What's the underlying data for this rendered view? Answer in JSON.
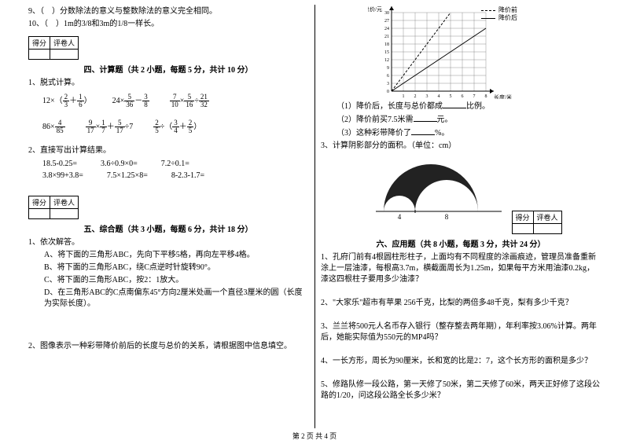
{
  "left": {
    "q9": "9、（　）分数除法的意义与整数除法的意义完全相同。",
    "q10": "10、（　）1m的3/8和3m的1/8一样长。",
    "score_labels": [
      "得分",
      "评卷人"
    ],
    "section4_title": "四、计算题（共 2 小题，每题 5 分，共计 10 分）",
    "s4_q1": "1、脱式计算。",
    "s4_q2": "2、直接写出计算结果。",
    "calc_row1": {
      "a_pre": "12×（",
      "a_f1n": "2",
      "a_f1d": "3",
      "a_mid": "＋",
      "a_f2n": "1",
      "a_f2d": "6",
      "a_post": "）",
      "b_pre": "24×",
      "b_f1n": "5",
      "b_f1d": "36",
      "b_mid": "－",
      "b_f2n": "3",
      "b_f2d": "8",
      "c_f1n": "7",
      "c_f1d": "10",
      "c_op1": "×",
      "c_f2n": "5",
      "c_f2d": "16",
      "c_op2": "÷",
      "c_f3n": "21",
      "c_f3d": "32"
    },
    "calc_row2": {
      "a_pre": "86×",
      "a_f1n": "4",
      "a_f1d": "85",
      "b_f1n": "9",
      "b_f1d": "17",
      "b_op1": "×",
      "b_f2n": "1",
      "b_f2d": "7",
      "b_op2": "＋",
      "b_f3n": "5",
      "b_f3d": "17",
      "b_op3": "÷7",
      "c_f1n": "2",
      "c_f1d": "5",
      "c_op1": "÷（",
      "c_f2n": "3",
      "c_f2d": "4",
      "c_op2": "＋",
      "c_f3n": "2",
      "c_f3d": "5",
      "c_post": "）"
    },
    "direct": {
      "r1a": "18.5-0.25=",
      "r1b": "3.6÷0.9×0=",
      "r1c": "7.2÷0.1=",
      "r2a": "3.8×99+3.8=",
      "r2b": "7.5×1.25×8=",
      "r2c": "8-2.3-1.7="
    },
    "section5_title": "五、综合题（共 3 小题，每题 6 分，共计 18 分）",
    "s5_q1": "1、依次解答。",
    "s5_qA": "A、将下面的三角形ABC，先向下平移5格，再向左平移4格。",
    "s5_qB": "B、将下面的三角形ABC，绕C点逆时针旋转90°。",
    "s5_qC": "C、将下面的三角形ABC，按2：1放大。",
    "s5_qD": "D、在三角形ABC的C点南偏东45°方向2厘米处画一个直径3厘米的圆（长度为实际长度）。",
    "s5_q2": "2、图像表示一种彩带降价前后的长度与总价的关系，请根据图中信息填空。"
  },
  "right": {
    "chart": {
      "y_label": "总价/元",
      "x_label": "长度/米",
      "legend_before": "降价前",
      "legend_after": "降价后",
      "y_ticks": [
        "30",
        "27",
        "24",
        "21",
        "18",
        "15",
        "12",
        "9",
        "6",
        "3",
        "0"
      ],
      "x_ticks": [
        "1",
        "2",
        "3",
        "4",
        "5",
        "6",
        "7",
        "8"
      ],
      "grid_color": "#777",
      "line_before": [
        [
          0,
          0
        ],
        [
          80,
          120
        ]
      ],
      "line_after": [
        [
          0,
          0
        ],
        [
          120,
          90
        ]
      ]
    },
    "r_q1": "（1）降价后，长度与总价都成",
    "r_q1_suffix": "比例。",
    "r_q2": "（2）降价前买7.5米需",
    "r_q2_suffix": "元。",
    "r_q3": "（3）这种彩带降价了",
    "r_q3_suffix": "%。",
    "s5_q3": "3、计算阴影部分的面积。（单位：cm）",
    "arc": {
      "left_label": "4",
      "right_label": "8"
    },
    "score_labels": [
      "得分",
      "评卷人"
    ],
    "section6_title": "六、应用题（共 8 小题，每题 3 分，共计 24 分）",
    "s6_q1": "1、孔府门前有4根圆柱形柱子，上面均有不同程度的涂画痕迹，管理员准备重新涂上一层油漆，每根高3.7m，横截面周长为1.25m，如果每平方米用油漆0.2kg，漆这四根柱子要用多少油漆？",
    "s6_q2": "2、\"大家乐\"超市有苹果 256千克，比梨的两倍多48千克，梨有多少千克？",
    "s6_q3": "3、兰兰将500元人名币存入银行（整存整去两年期），年利率按3.06%计算。两年后，她能实际值为550元的MP4吗？",
    "s6_q4": "4、一长方形，周长为90厘米，长和宽的比是2：7，这个长方形的面积是多少？",
    "s6_q5": "5、修路队修一段公路，第一天修了50米，第二天修了60米，两天正好修了这段公路的1/20，问这段公路全长多少米？"
  },
  "footer": "第 2 页 共 4 页"
}
